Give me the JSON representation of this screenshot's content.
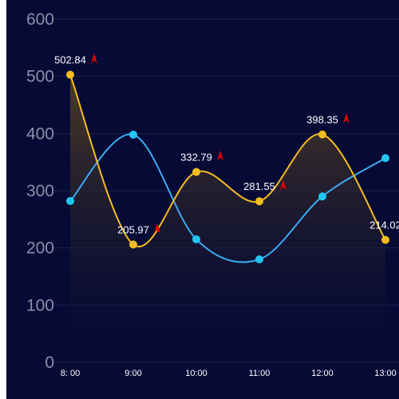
{
  "chart_data": {
    "type": "line",
    "categories": [
      "8:00",
      "9:00",
      "10:00",
      "11:00",
      "12:00",
      "13:00"
    ],
    "category_display": [
      "8:  00",
      "9:00",
      "10:00",
      "11:00",
      "12:00",
      "13:00"
    ],
    "ylim": [
      0,
      600
    ],
    "yticks": [
      0,
      100,
      200,
      300,
      400,
      500,
      600
    ],
    "grid": true,
    "smooth": true,
    "series": [
      {
        "values": [
          502.84,
          205.97,
          332.79,
          281.55,
          398.35,
          214.02
        ],
        "value_labels": [
          "502.84",
          "205.97",
          "332.79",
          "281.55",
          "398.35",
          "214.02"
        ],
        "color": "#f5bd1f",
        "area": true,
        "labels_shown": true
      },
      {
        "values": [
          282,
          398,
          215,
          180,
          290,
          357
        ],
        "color": "#3aabf3",
        "point_color": "#22c7f2",
        "area": false,
        "labels_shown": false
      }
    ],
    "marker_icon": "red-up-arrow-icon"
  },
  "colors": {
    "background": "#060a35",
    "grid": "#1c2150",
    "axis": "#8b8fa8",
    "arrow": "#e00000"
  }
}
